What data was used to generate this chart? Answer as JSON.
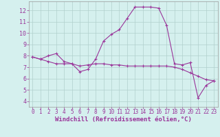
{
  "xlabel": "Windchill (Refroidissement éolien,°C)",
  "bg_color": "#d5f0ee",
  "line_color": "#993399",
  "grid_color": "#b0d0cc",
  "xlim": [
    -0.5,
    23.5
  ],
  "ylim": [
    3.5,
    12.8
  ],
  "yticks": [
    4,
    5,
    6,
    7,
    8,
    9,
    10,
    11,
    12
  ],
  "xticks": [
    0,
    1,
    2,
    3,
    4,
    5,
    6,
    7,
    8,
    9,
    10,
    11,
    12,
    13,
    14,
    15,
    16,
    17,
    18,
    19,
    20,
    21,
    22,
    23
  ],
  "line1_x": [
    0,
    1,
    2,
    3,
    4,
    5,
    6,
    7,
    8,
    9,
    10,
    11,
    12,
    13,
    14,
    15,
    16,
    17,
    18,
    19,
    20,
    21,
    22,
    23
  ],
  "line1_y": [
    7.9,
    7.7,
    8.0,
    8.2,
    7.5,
    7.3,
    6.6,
    6.8,
    7.7,
    9.3,
    9.9,
    10.3,
    11.3,
    12.3,
    12.3,
    12.3,
    12.2,
    10.7,
    7.3,
    7.2,
    7.4,
    4.3,
    5.4,
    5.8
  ],
  "line2_x": [
    0,
    1,
    2,
    3,
    4,
    5,
    6,
    7,
    8,
    9,
    10,
    11,
    12,
    13,
    14,
    15,
    16,
    17,
    18,
    19,
    20,
    21,
    22,
    23
  ],
  "line2_y": [
    7.9,
    7.7,
    7.5,
    7.3,
    7.3,
    7.3,
    7.1,
    7.2,
    7.3,
    7.3,
    7.2,
    7.2,
    7.1,
    7.1,
    7.1,
    7.1,
    7.1,
    7.1,
    7.0,
    6.8,
    6.5,
    6.2,
    5.9,
    5.8
  ],
  "tick_fontsize": 5.5,
  "xlabel_fontsize": 6.5
}
